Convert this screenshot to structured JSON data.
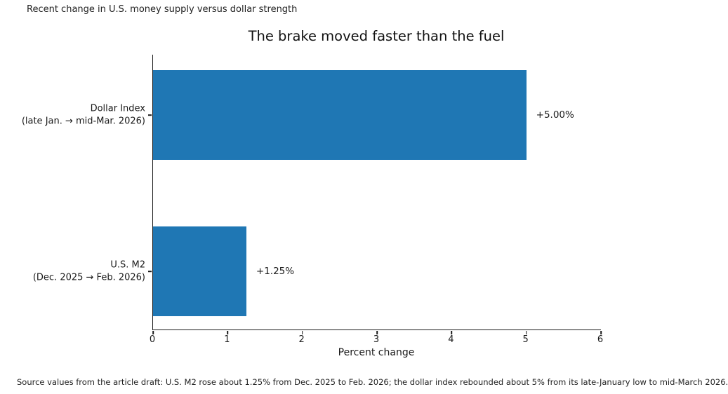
{
  "supertitle": "Recent change in U.S. money supply versus dollar strength",
  "source_note": "Source values from the article draft: U.S. M2 rose about 1.25% from Dec. 2025 to Feb. 2026; the dollar index rebounded about 5% from its late-January low to mid-March 2026.",
  "chart_data": {
    "type": "bar",
    "orientation": "horizontal",
    "title": "The brake moved faster than the fuel",
    "categories": [
      "Dollar Index (late Jan. → mid-Mar. 2026)",
      "U.S. M2 (Dec. 2025 → Feb. 2026)"
    ],
    "category_lines": [
      [
        "Dollar Index",
        "(late Jan. → mid-Mar. 2026)"
      ],
      [
        "U.S. M2",
        "(Dec. 2025 → Feb. 2026)"
      ]
    ],
    "values": [
      5.0,
      1.25
    ],
    "value_labels": [
      "+5.00%",
      "+1.25%"
    ],
    "xlabel": "Percent change",
    "xlim": [
      0,
      6
    ],
    "xticks": [
      0,
      1,
      2,
      3,
      4,
      5,
      6
    ],
    "bar_color": "#1f77b4",
    "grid": false,
    "legend_position": "none"
  }
}
